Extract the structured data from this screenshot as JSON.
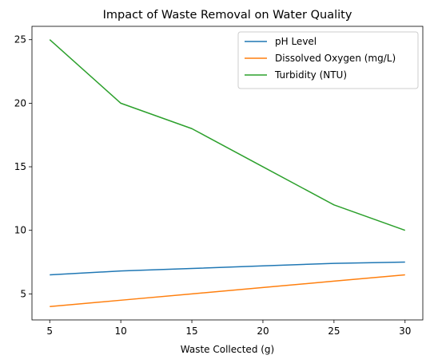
{
  "chart_data": {
    "type": "line",
    "title": "Impact of Waste Removal on Water Quality",
    "xlabel": "Waste Collected (g)",
    "ylabel": "",
    "x": [
      5,
      10,
      15,
      20,
      25,
      30
    ],
    "xlim": [
      3.75,
      31.25
    ],
    "ylim": [
      2.95,
      26.05
    ],
    "xticks": [
      5,
      10,
      15,
      20,
      25,
      30
    ],
    "yticks": [
      5,
      10,
      15,
      20,
      25
    ],
    "grid": false,
    "legend_position": "top-right",
    "series": [
      {
        "name": "pH Level",
        "color": "#1f77b4",
        "values": [
          6.5,
          6.8,
          7.0,
          7.2,
          7.4,
          7.5
        ]
      },
      {
        "name": "Dissolved Oxygen (mg/L)",
        "color": "#ff7f0e",
        "values": [
          4.0,
          4.5,
          5.0,
          5.5,
          6.0,
          6.5
        ]
      },
      {
        "name": "Turbidity (NTU)",
        "color": "#2ca02c",
        "values": [
          25,
          20,
          18,
          15,
          12,
          10
        ]
      }
    ]
  }
}
